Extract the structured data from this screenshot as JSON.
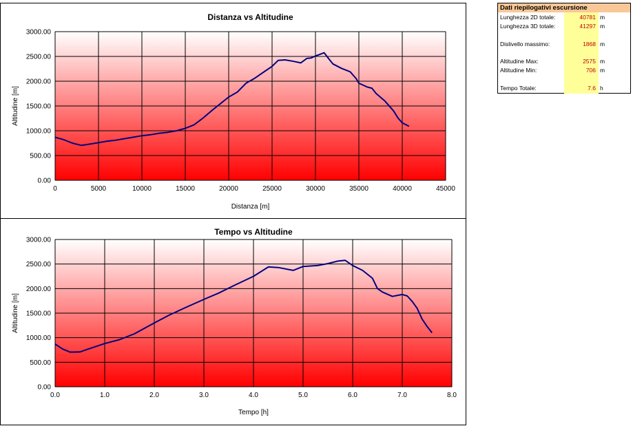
{
  "summary": {
    "title": "Dati riepilogativi escursione",
    "header_color": "#f8c898",
    "value_column_color": "#ffff99",
    "rows": [
      {
        "label": "Lunghezza 2D totale:",
        "value": "40781",
        "unit": "m"
      },
      {
        "label": "Lunghezza 3D totale:",
        "value": "41297",
        "unit": "m"
      },
      {
        "label": "Dislivello massimo:",
        "value": "1868",
        "unit": "m"
      },
      {
        "label": "Altitudine Max:",
        "value": "2575",
        "unit": "m"
      },
      {
        "label": "Altitudine Min:",
        "value": "706",
        "unit": "m"
      },
      {
        "label": "Tempo Totale:",
        "value": "7.6",
        "unit": "h"
      }
    ]
  },
  "chart_data": [
    {
      "type": "line",
      "title": "Distanza vs Altitudine",
      "xlabel": "Distanza [m]",
      "ylabel": "Altitudine [m]",
      "xlim": [
        0,
        45000
      ],
      "ylim": [
        0,
        3000
      ],
      "x_ticks": [
        0,
        5000,
        10000,
        15000,
        20000,
        25000,
        30000,
        35000,
        40000,
        45000
      ],
      "x_tick_labels": [
        "0",
        "5000",
        "10000",
        "15000",
        "20000",
        "25000",
        "30000",
        "35000",
        "40000",
        "45000"
      ],
      "y_ticks": [
        0,
        500,
        1000,
        1500,
        2000,
        2500,
        3000
      ],
      "y_tick_labels": [
        "0.00",
        "500.00",
        "1000.00",
        "1500.00",
        "2000.00",
        "2500.00",
        "3000.00"
      ],
      "grid": true,
      "line_color": "#000080",
      "background_gradient": [
        "#ffffff",
        "#ff0000"
      ],
      "series": [
        {
          "x": [
            0,
            1000,
            2000,
            3000,
            4000,
            5000,
            6000,
            7000,
            8000,
            9000,
            10000,
            11000,
            12000,
            13000,
            14000,
            15000,
            16000,
            17000,
            18000,
            19000,
            20000,
            21000,
            22000,
            23000,
            24000,
            25000,
            25700,
            26500,
            27500,
            28300,
            29000,
            29500,
            30000,
            30500,
            31000,
            31500,
            32000,
            33000,
            34000,
            34700,
            35000,
            36000,
            36500,
            37000,
            38000,
            39000,
            39500,
            40000,
            40781
          ],
          "y": [
            870,
            820,
            750,
            706,
            730,
            760,
            790,
            810,
            840,
            870,
            900,
            920,
            950,
            970,
            1000,
            1050,
            1120,
            1250,
            1400,
            1540,
            1680,
            1780,
            1960,
            2060,
            2180,
            2300,
            2420,
            2430,
            2400,
            2370,
            2460,
            2470,
            2510,
            2540,
            2575,
            2460,
            2350,
            2260,
            2190,
            2050,
            1960,
            1880,
            1860,
            1750,
            1600,
            1400,
            1260,
            1160,
            1090
          ]
        }
      ]
    },
    {
      "type": "line",
      "title": "Tempo vs Altitudine",
      "xlabel": "Tempo [h]",
      "ylabel": "Altitudine [m]",
      "xlim": [
        0,
        8
      ],
      "ylim": [
        0,
        3000
      ],
      "x_ticks": [
        0,
        1,
        2,
        3,
        4,
        5,
        6,
        7,
        8
      ],
      "x_tick_labels": [
        "0.0",
        "1.0",
        "2.0",
        "3.0",
        "4.0",
        "5.0",
        "6.0",
        "7.0",
        "8.0"
      ],
      "y_ticks": [
        0,
        500,
        1000,
        1500,
        2000,
        2500,
        3000
      ],
      "y_tick_labels": [
        "0.00",
        "500.00",
        "1000.00",
        "1500.00",
        "2000.00",
        "2500.00",
        "3000.00"
      ],
      "grid": true,
      "line_color": "#000080",
      "background_gradient": [
        "#ffffff",
        "#ff0000"
      ],
      "series": [
        {
          "x": [
            0.0,
            0.15,
            0.3,
            0.5,
            0.7,
            1.0,
            1.3,
            1.6,
            2.0,
            2.3,
            2.6,
            3.0,
            3.3,
            3.6,
            4.0,
            4.3,
            4.5,
            4.8,
            5.0,
            5.3,
            5.5,
            5.7,
            5.85,
            6.0,
            6.2,
            6.4,
            6.5,
            6.6,
            6.8,
            7.0,
            7.1,
            7.2,
            7.3,
            7.4,
            7.5,
            7.6
          ],
          "y": [
            870,
            770,
            706,
            710,
            780,
            880,
            960,
            1080,
            1300,
            1460,
            1600,
            1780,
            1910,
            2060,
            2250,
            2440,
            2430,
            2370,
            2450,
            2470,
            2510,
            2560,
            2575,
            2470,
            2370,
            2210,
            2000,
            1930,
            1840,
            1880,
            1850,
            1740,
            1600,
            1380,
            1230,
            1100
          ]
        }
      ]
    }
  ]
}
